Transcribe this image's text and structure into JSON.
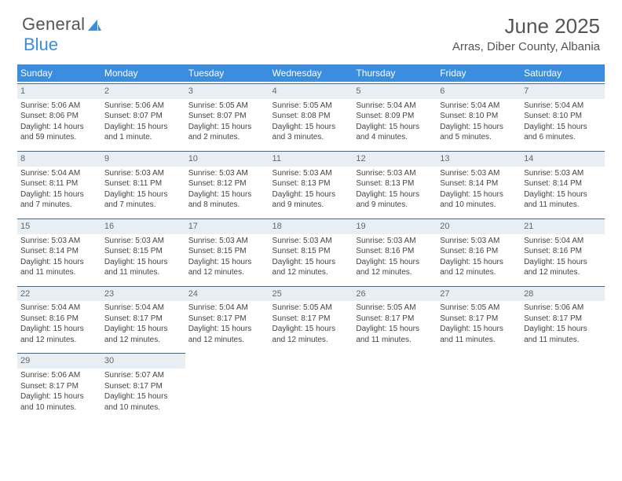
{
  "brand": {
    "part1": "General",
    "part2": "Blue"
  },
  "title": "June 2025",
  "location": "Arras, Diber County, Albania",
  "colors": {
    "header_bg": "#3b8de0",
    "header_text": "#ffffff",
    "daynum_bg": "#e9eef2",
    "daynum_text": "#5e6a74",
    "rule": "#3b6a94",
    "body_text": "#444444",
    "title_text": "#555555"
  },
  "dayNames": [
    "Sunday",
    "Monday",
    "Tuesday",
    "Wednesday",
    "Thursday",
    "Friday",
    "Saturday"
  ],
  "days": [
    {
      "n": "1",
      "sr": "5:06 AM",
      "ss": "8:06 PM",
      "dl": "14 hours and 59 minutes."
    },
    {
      "n": "2",
      "sr": "5:06 AM",
      "ss": "8:07 PM",
      "dl": "15 hours and 1 minute."
    },
    {
      "n": "3",
      "sr": "5:05 AM",
      "ss": "8:07 PM",
      "dl": "15 hours and 2 minutes."
    },
    {
      "n": "4",
      "sr": "5:05 AM",
      "ss": "8:08 PM",
      "dl": "15 hours and 3 minutes."
    },
    {
      "n": "5",
      "sr": "5:04 AM",
      "ss": "8:09 PM",
      "dl": "15 hours and 4 minutes."
    },
    {
      "n": "6",
      "sr": "5:04 AM",
      "ss": "8:10 PM",
      "dl": "15 hours and 5 minutes."
    },
    {
      "n": "7",
      "sr": "5:04 AM",
      "ss": "8:10 PM",
      "dl": "15 hours and 6 minutes."
    },
    {
      "n": "8",
      "sr": "5:04 AM",
      "ss": "8:11 PM",
      "dl": "15 hours and 7 minutes."
    },
    {
      "n": "9",
      "sr": "5:03 AM",
      "ss": "8:11 PM",
      "dl": "15 hours and 7 minutes."
    },
    {
      "n": "10",
      "sr": "5:03 AM",
      "ss": "8:12 PM",
      "dl": "15 hours and 8 minutes."
    },
    {
      "n": "11",
      "sr": "5:03 AM",
      "ss": "8:13 PM",
      "dl": "15 hours and 9 minutes."
    },
    {
      "n": "12",
      "sr": "5:03 AM",
      "ss": "8:13 PM",
      "dl": "15 hours and 9 minutes."
    },
    {
      "n": "13",
      "sr": "5:03 AM",
      "ss": "8:14 PM",
      "dl": "15 hours and 10 minutes."
    },
    {
      "n": "14",
      "sr": "5:03 AM",
      "ss": "8:14 PM",
      "dl": "15 hours and 11 minutes."
    },
    {
      "n": "15",
      "sr": "5:03 AM",
      "ss": "8:14 PM",
      "dl": "15 hours and 11 minutes."
    },
    {
      "n": "16",
      "sr": "5:03 AM",
      "ss": "8:15 PM",
      "dl": "15 hours and 11 minutes."
    },
    {
      "n": "17",
      "sr": "5:03 AM",
      "ss": "8:15 PM",
      "dl": "15 hours and 12 minutes."
    },
    {
      "n": "18",
      "sr": "5:03 AM",
      "ss": "8:15 PM",
      "dl": "15 hours and 12 minutes."
    },
    {
      "n": "19",
      "sr": "5:03 AM",
      "ss": "8:16 PM",
      "dl": "15 hours and 12 minutes."
    },
    {
      "n": "20",
      "sr": "5:03 AM",
      "ss": "8:16 PM",
      "dl": "15 hours and 12 minutes."
    },
    {
      "n": "21",
      "sr": "5:04 AM",
      "ss": "8:16 PM",
      "dl": "15 hours and 12 minutes."
    },
    {
      "n": "22",
      "sr": "5:04 AM",
      "ss": "8:16 PM",
      "dl": "15 hours and 12 minutes."
    },
    {
      "n": "23",
      "sr": "5:04 AM",
      "ss": "8:17 PM",
      "dl": "15 hours and 12 minutes."
    },
    {
      "n": "24",
      "sr": "5:04 AM",
      "ss": "8:17 PM",
      "dl": "15 hours and 12 minutes."
    },
    {
      "n": "25",
      "sr": "5:05 AM",
      "ss": "8:17 PM",
      "dl": "15 hours and 12 minutes."
    },
    {
      "n": "26",
      "sr": "5:05 AM",
      "ss": "8:17 PM",
      "dl": "15 hours and 11 minutes."
    },
    {
      "n": "27",
      "sr": "5:05 AM",
      "ss": "8:17 PM",
      "dl": "15 hours and 11 minutes."
    },
    {
      "n": "28",
      "sr": "5:06 AM",
      "ss": "8:17 PM",
      "dl": "15 hours and 11 minutes."
    },
    {
      "n": "29",
      "sr": "5:06 AM",
      "ss": "8:17 PM",
      "dl": "15 hours and 10 minutes."
    },
    {
      "n": "30",
      "sr": "5:07 AM",
      "ss": "8:17 PM",
      "dl": "15 hours and 10 minutes."
    }
  ],
  "labels": {
    "sunrise": "Sunrise:",
    "sunset": "Sunset:",
    "daylight": "Daylight:"
  }
}
